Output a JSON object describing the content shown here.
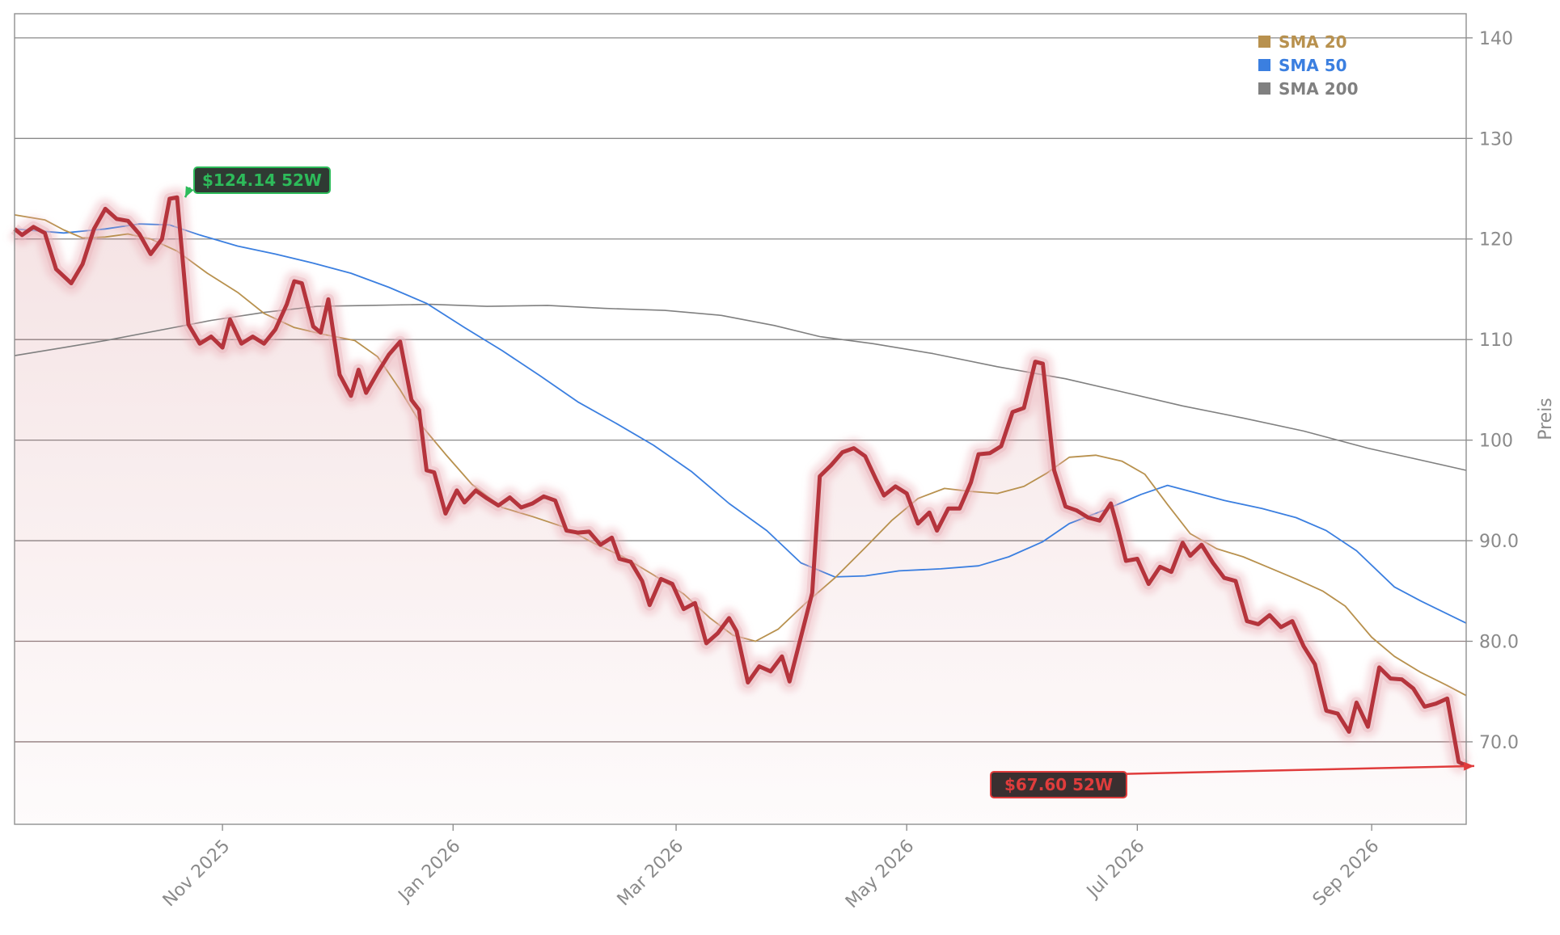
{
  "chart_data": {
    "type": "line",
    "ylabel": "Preis",
    "ylim": [
      61.8,
      142.4
    ],
    "yticks": [
      70,
      80,
      90,
      100,
      110,
      120,
      130,
      140
    ],
    "ytick_labels": [
      "70.0",
      "80.0",
      "90.0",
      "100",
      "110",
      "120",
      "130",
      "140"
    ],
    "xlim": [
      "2025-09-07",
      "2026-09-26"
    ],
    "xticks": [
      "2025-11-01",
      "2026-01-01",
      "2026-03-01",
      "2026-05-01",
      "2026-07-01",
      "2026-09-01"
    ],
    "xtick_labels": [
      "Nov 2025",
      "Jan 2026",
      "Mar 2026",
      "May 2026",
      "Jul 2026",
      "Sep 2026"
    ],
    "legend_position": "top-right",
    "grid": "horizontal",
    "colors": {
      "price": "#b5343c",
      "sma20": "#b8914e",
      "sma50": "#3b7fe0",
      "sma200": "#808080",
      "high": "#2dbb5a",
      "low": "#e03c3c"
    },
    "series": [
      {
        "name": "",
        "role": "price",
        "points": [
          [
            "2025-09-07",
            121.0
          ],
          [
            "2025-09-09",
            120.4
          ],
          [
            "2025-09-12",
            121.2
          ],
          [
            "2025-09-15",
            120.6
          ],
          [
            "2025-09-18",
            117.0
          ],
          [
            "2025-09-22",
            115.6
          ],
          [
            "2025-09-25",
            117.5
          ],
          [
            "2025-09-28",
            121.0
          ],
          [
            "2025-10-01",
            123.0
          ],
          [
            "2025-10-04",
            122.0
          ],
          [
            "2025-10-07",
            121.8
          ],
          [
            "2025-10-10",
            120.5
          ],
          [
            "2025-10-13",
            118.5
          ],
          [
            "2025-10-16",
            120.0
          ],
          [
            "2025-10-18",
            124.0
          ],
          [
            "2025-10-20",
            124.14
          ],
          [
            "2025-10-23",
            111.5
          ],
          [
            "2025-10-26",
            109.6
          ],
          [
            "2025-10-29",
            110.3
          ],
          [
            "2025-11-01",
            109.2
          ],
          [
            "2025-11-03",
            112.0
          ],
          [
            "2025-11-06",
            109.6
          ],
          [
            "2025-11-09",
            110.3
          ],
          [
            "2025-11-12",
            109.6
          ],
          [
            "2025-11-15",
            111.0
          ],
          [
            "2025-11-18",
            113.5
          ],
          [
            "2025-11-20",
            115.8
          ],
          [
            "2025-11-22",
            115.6
          ],
          [
            "2025-11-25",
            111.3
          ],
          [
            "2025-11-27",
            110.7
          ],
          [
            "2025-11-29",
            114.0
          ],
          [
            "2025-12-02",
            106.5
          ],
          [
            "2025-12-05",
            104.4
          ],
          [
            "2025-12-07",
            107.0
          ],
          [
            "2025-12-09",
            104.7
          ],
          [
            "2025-12-12",
            106.7
          ],
          [
            "2025-12-15",
            108.5
          ],
          [
            "2025-12-18",
            109.8
          ],
          [
            "2025-12-21",
            104.0
          ],
          [
            "2025-12-23",
            103.0
          ],
          [
            "2025-12-25",
            97.0
          ],
          [
            "2025-12-27",
            96.8
          ],
          [
            "2025-12-30",
            92.7
          ],
          [
            "2026-01-02",
            95.0
          ],
          [
            "2026-01-04",
            93.8
          ],
          [
            "2026-01-07",
            95.0
          ],
          [
            "2026-01-10",
            94.2
          ],
          [
            "2026-01-13",
            93.5
          ],
          [
            "2026-01-16",
            94.3
          ],
          [
            "2026-01-19",
            93.3
          ],
          [
            "2026-01-22",
            93.7
          ],
          [
            "2026-01-25",
            94.4
          ],
          [
            "2026-01-28",
            94.0
          ],
          [
            "2026-01-31",
            91.0
          ],
          [
            "2026-02-03",
            90.8
          ],
          [
            "2026-02-06",
            90.9
          ],
          [
            "2026-02-09",
            89.6
          ],
          [
            "2026-02-12",
            90.3
          ],
          [
            "2026-02-14",
            88.2
          ],
          [
            "2026-02-17",
            87.9
          ],
          [
            "2026-02-20",
            86.0
          ],
          [
            "2026-02-22",
            83.6
          ],
          [
            "2026-02-25",
            86.2
          ],
          [
            "2026-02-28",
            85.7
          ],
          [
            "2026-03-03",
            83.2
          ],
          [
            "2026-03-06",
            83.8
          ],
          [
            "2026-03-09",
            79.8
          ],
          [
            "2026-03-12",
            80.8
          ],
          [
            "2026-03-15",
            82.3
          ],
          [
            "2026-03-17",
            81.0
          ],
          [
            "2026-03-20",
            75.9
          ],
          [
            "2026-03-23",
            77.5
          ],
          [
            "2026-03-26",
            77.0
          ],
          [
            "2026-03-29",
            78.5
          ],
          [
            "2026-03-31",
            76.0
          ],
          [
            "2026-04-03",
            80.4
          ],
          [
            "2026-04-06",
            84.8
          ],
          [
            "2026-04-08",
            96.4
          ],
          [
            "2026-04-11",
            97.5
          ],
          [
            "2026-04-14",
            98.8
          ],
          [
            "2026-04-17",
            99.2
          ],
          [
            "2026-04-20",
            98.4
          ],
          [
            "2026-04-23",
            96.0
          ],
          [
            "2026-04-25",
            94.5
          ],
          [
            "2026-04-28",
            95.4
          ],
          [
            "2026-05-01",
            94.7
          ],
          [
            "2026-05-04",
            91.7
          ],
          [
            "2026-05-07",
            92.8
          ],
          [
            "2026-05-09",
            91.0
          ],
          [
            "2026-05-12",
            93.2
          ],
          [
            "2026-05-15",
            93.2
          ],
          [
            "2026-05-18",
            95.8
          ],
          [
            "2026-05-20",
            98.6
          ],
          [
            "2026-05-23",
            98.7
          ],
          [
            "2026-05-26",
            99.4
          ],
          [
            "2026-05-29",
            102.8
          ],
          [
            "2026-06-01",
            103.2
          ],
          [
            "2026-06-04",
            107.8
          ],
          [
            "2026-06-06",
            107.6
          ],
          [
            "2026-06-09",
            97.0
          ],
          [
            "2026-06-12",
            93.4
          ],
          [
            "2026-06-15",
            93.0
          ],
          [
            "2026-06-18",
            92.3
          ],
          [
            "2026-06-21",
            92.0
          ],
          [
            "2026-06-24",
            93.7
          ],
          [
            "2026-06-26",
            91.0
          ],
          [
            "2026-06-28",
            88.0
          ],
          [
            "2026-07-01",
            88.2
          ],
          [
            "2026-07-04",
            85.7
          ],
          [
            "2026-07-07",
            87.4
          ],
          [
            "2026-07-10",
            86.9
          ],
          [
            "2026-07-13",
            89.8
          ],
          [
            "2026-07-15",
            88.5
          ],
          [
            "2026-07-18",
            89.6
          ],
          [
            "2026-07-21",
            87.8
          ],
          [
            "2026-07-24",
            86.3
          ],
          [
            "2026-07-27",
            86.0
          ],
          [
            "2026-07-30",
            82.0
          ],
          [
            "2026-08-02",
            81.7
          ],
          [
            "2026-08-05",
            82.6
          ],
          [
            "2026-08-08",
            81.4
          ],
          [
            "2026-08-11",
            82.0
          ],
          [
            "2026-08-14",
            79.5
          ],
          [
            "2026-08-17",
            77.7
          ],
          [
            "2026-08-20",
            73.1
          ],
          [
            "2026-08-23",
            72.8
          ],
          [
            "2026-08-26",
            71.0
          ],
          [
            "2026-08-28",
            73.9
          ],
          [
            "2026-08-31",
            71.5
          ],
          [
            "2026-09-03",
            77.4
          ],
          [
            "2026-09-06",
            76.3
          ],
          [
            "2026-09-09",
            76.2
          ],
          [
            "2026-09-12",
            75.3
          ],
          [
            "2026-09-15",
            73.5
          ],
          [
            "2026-09-18",
            73.8
          ],
          [
            "2026-09-21",
            74.3
          ],
          [
            "2026-09-24",
            68.0
          ],
          [
            "2026-09-26",
            67.6
          ]
        ]
      },
      {
        "name": "SMA 20",
        "role": "sma20",
        "points": [
          [
            "2025-09-07",
            122.4
          ],
          [
            "2025-09-15",
            121.9
          ],
          [
            "2025-09-20",
            120.9
          ],
          [
            "2025-09-25",
            120.1
          ],
          [
            "2025-10-01",
            120.2
          ],
          [
            "2025-10-07",
            120.5
          ],
          [
            "2025-10-13",
            120.0
          ],
          [
            "2025-10-20",
            118.8
          ],
          [
            "2025-10-28",
            116.6
          ],
          [
            "2025-11-05",
            114.7
          ],
          [
            "2025-11-12",
            112.6
          ],
          [
            "2025-11-20",
            111.2
          ],
          [
            "2025-11-28",
            110.5
          ],
          [
            "2025-12-06",
            109.9
          ],
          [
            "2025-12-12",
            108.3
          ],
          [
            "2025-12-18",
            105.0
          ],
          [
            "2025-12-24",
            101.3
          ],
          [
            "2025-12-30",
            98.6
          ],
          [
            "2026-01-06",
            95.6
          ],
          [
            "2026-01-14",
            93.3
          ],
          [
            "2026-01-22",
            92.4
          ],
          [
            "2026-01-30",
            91.4
          ],
          [
            "2026-02-07",
            89.8
          ],
          [
            "2026-02-15",
            88.4
          ],
          [
            "2026-02-23",
            86.6
          ],
          [
            "2026-03-03",
            84.7
          ],
          [
            "2026-03-10",
            82.3
          ],
          [
            "2026-03-16",
            80.6
          ],
          [
            "2026-03-22",
            80.0
          ],
          [
            "2026-03-28",
            81.2
          ],
          [
            "2026-04-04",
            83.7
          ],
          [
            "2026-04-12",
            86.3
          ],
          [
            "2026-04-20",
            89.3
          ],
          [
            "2026-04-27",
            92.0
          ],
          [
            "2026-05-04",
            94.2
          ],
          [
            "2026-05-11",
            95.2
          ],
          [
            "2026-05-18",
            94.9
          ],
          [
            "2026-05-25",
            94.7
          ],
          [
            "2026-06-01",
            95.4
          ],
          [
            "2026-06-07",
            96.7
          ],
          [
            "2026-06-13",
            98.3
          ],
          [
            "2026-06-20",
            98.5
          ],
          [
            "2026-06-27",
            97.9
          ],
          [
            "2026-07-03",
            96.6
          ],
          [
            "2026-07-09",
            93.6
          ],
          [
            "2026-07-15",
            90.7
          ],
          [
            "2026-07-22",
            89.2
          ],
          [
            "2026-07-29",
            88.4
          ],
          [
            "2026-08-05",
            87.3
          ],
          [
            "2026-08-12",
            86.2
          ],
          [
            "2026-08-19",
            85.0
          ],
          [
            "2026-08-25",
            83.5
          ],
          [
            "2026-09-01",
            80.4
          ],
          [
            "2026-09-07",
            78.5
          ],
          [
            "2026-09-14",
            76.9
          ],
          [
            "2026-09-21",
            75.6
          ],
          [
            "2026-09-26",
            74.6
          ]
        ]
      },
      {
        "name": "SMA 50",
        "role": "sma50",
        "points": [
          [
            "2025-09-07",
            121.0
          ],
          [
            "2025-09-20",
            120.6
          ],
          [
            "2025-10-01",
            121.0
          ],
          [
            "2025-10-10",
            121.5
          ],
          [
            "2025-10-18",
            121.4
          ],
          [
            "2025-10-26",
            120.4
          ],
          [
            "2025-11-05",
            119.3
          ],
          [
            "2025-11-15",
            118.5
          ],
          [
            "2025-11-25",
            117.6
          ],
          [
            "2025-12-05",
            116.6
          ],
          [
            "2025-12-15",
            115.2
          ],
          [
            "2025-12-25",
            113.6
          ],
          [
            "2026-01-04",
            111.2
          ],
          [
            "2026-01-14",
            108.9
          ],
          [
            "2026-01-24",
            106.4
          ],
          [
            "2026-02-03",
            103.8
          ],
          [
            "2026-02-13",
            101.7
          ],
          [
            "2026-02-23",
            99.5
          ],
          [
            "2026-03-05",
            96.9
          ],
          [
            "2026-03-15",
            93.7
          ],
          [
            "2026-03-25",
            91.0
          ],
          [
            "2026-04-03",
            87.8
          ],
          [
            "2026-04-12",
            86.4
          ],
          [
            "2026-04-20",
            86.5
          ],
          [
            "2026-04-29",
            87.0
          ],
          [
            "2026-05-10",
            87.2
          ],
          [
            "2026-05-20",
            87.5
          ],
          [
            "2026-05-28",
            88.4
          ],
          [
            "2026-06-06",
            89.9
          ],
          [
            "2026-06-13",
            91.7
          ],
          [
            "2026-06-22",
            93.0
          ],
          [
            "2026-07-02",
            94.6
          ],
          [
            "2026-07-09",
            95.5
          ],
          [
            "2026-07-16",
            94.8
          ],
          [
            "2026-07-24",
            94.0
          ],
          [
            "2026-08-03",
            93.2
          ],
          [
            "2026-08-12",
            92.3
          ],
          [
            "2026-08-20",
            91.0
          ],
          [
            "2026-08-28",
            89.0
          ],
          [
            "2026-09-07",
            85.4
          ],
          [
            "2026-09-14",
            84.0
          ],
          [
            "2026-09-26",
            81.8
          ]
        ]
      },
      {
        "name": "SMA 200",
        "role": "sma200",
        "points": [
          [
            "2025-09-07",
            108.4
          ],
          [
            "2025-09-20",
            109.2
          ],
          [
            "2025-10-01",
            109.9
          ],
          [
            "2025-10-15",
            110.9
          ],
          [
            "2025-10-29",
            111.9
          ],
          [
            "2025-11-12",
            112.7
          ],
          [
            "2025-11-26",
            113.3
          ],
          [
            "2025-12-10",
            113.4
          ],
          [
            "2025-12-26",
            113.5
          ],
          [
            "2026-01-10",
            113.3
          ],
          [
            "2026-01-26",
            113.4
          ],
          [
            "2026-02-10",
            113.1
          ],
          [
            "2026-02-26",
            112.9
          ],
          [
            "2026-03-13",
            112.4
          ],
          [
            "2026-03-27",
            111.4
          ],
          [
            "2026-04-08",
            110.3
          ],
          [
            "2026-04-22",
            109.6
          ],
          [
            "2026-05-08",
            108.6
          ],
          [
            "2026-05-25",
            107.3
          ],
          [
            "2026-06-12",
            106.1
          ],
          [
            "2026-06-27",
            104.8
          ],
          [
            "2026-07-13",
            103.4
          ],
          [
            "2026-07-29",
            102.2
          ],
          [
            "2026-08-14",
            100.9
          ],
          [
            "2026-08-31",
            99.2
          ],
          [
            "2026-09-26",
            97.0
          ]
        ]
      }
    ],
    "annotations": [
      {
        "label": "$124.14 52W",
        "x": "2025-10-20",
        "y": 124.14,
        "kind": "high"
      },
      {
        "label": "$67.60 52W",
        "x": "2026-09-26",
        "y": 67.6,
        "kind": "low"
      }
    ]
  }
}
